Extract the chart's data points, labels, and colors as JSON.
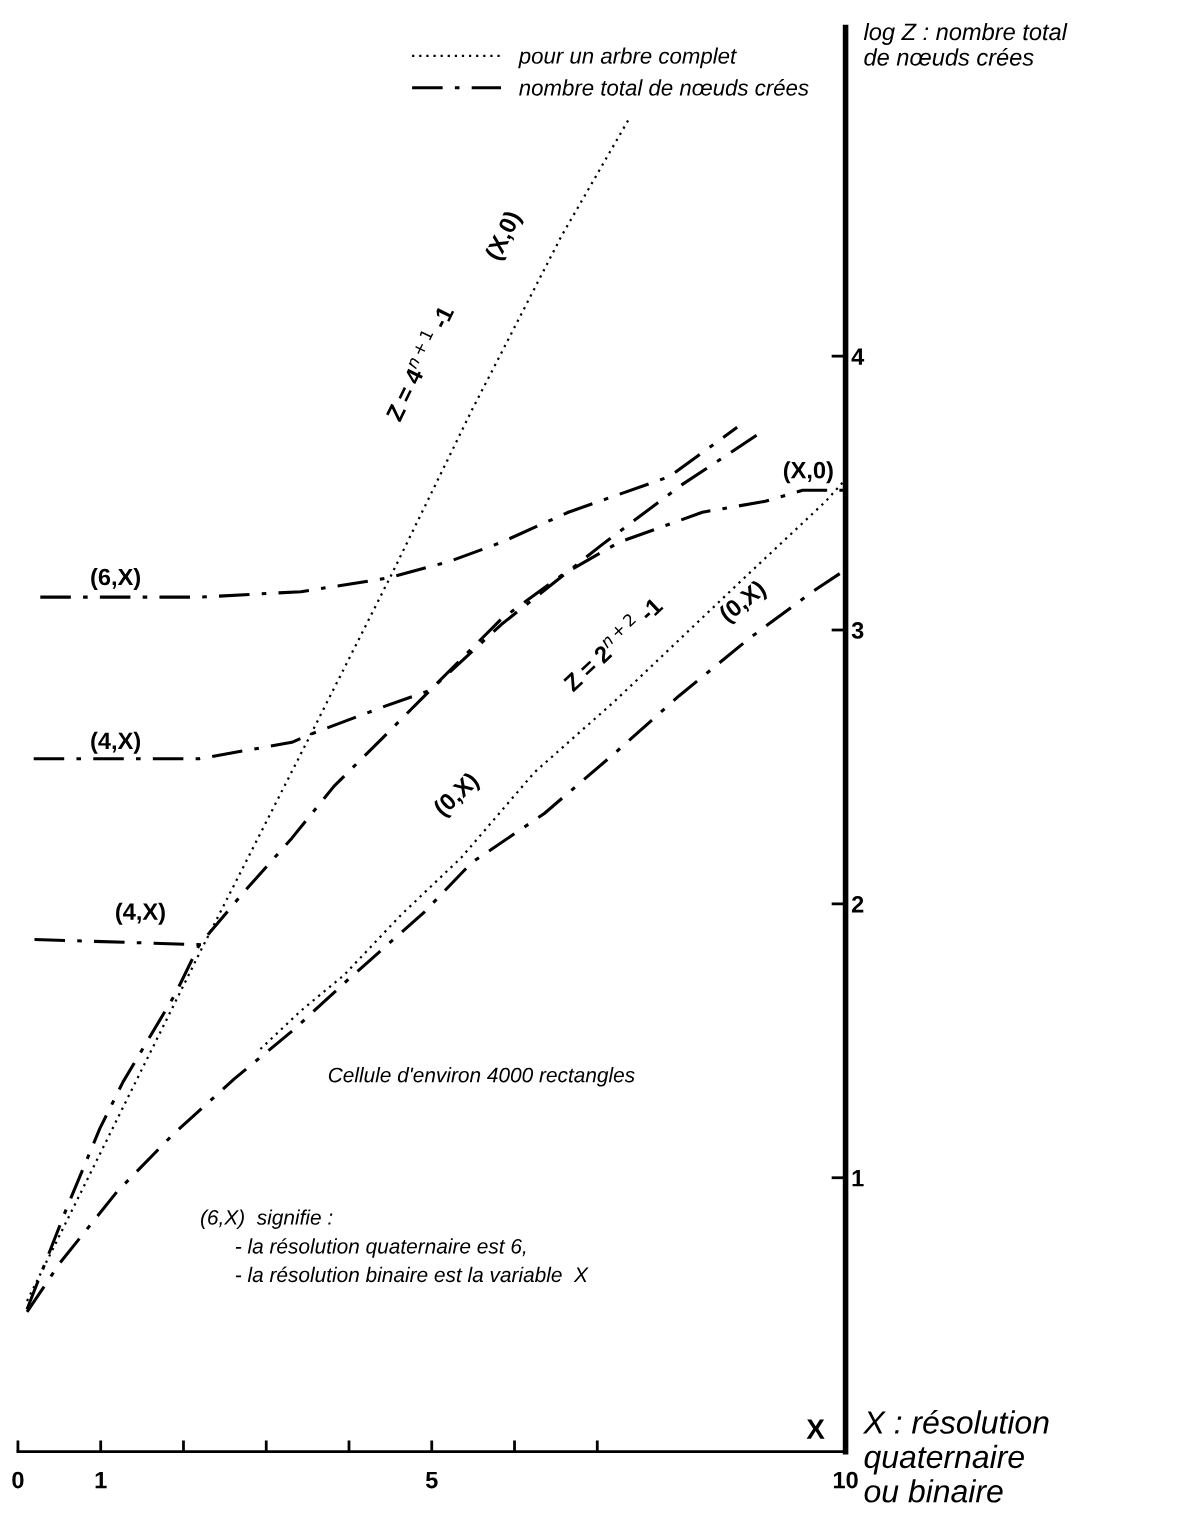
{
  "chart_data": {
    "type": "line",
    "xlabel": "X : résolution\nquaternaire\nou binaire",
    "ylabel": "log Z : nombre total\nde nœuds crées",
    "xlim": [
      0,
      10
    ],
    "ylim": [
      0,
      5.2
    ],
    "xticks": [
      0,
      1,
      {
        "value": 2,
        "label": null
      },
      {
        "value": 3,
        "label": null
      },
      {
        "value": 4,
        "label": null
      },
      5,
      {
        "value": 6,
        "label": null
      },
      {
        "value": 7,
        "label": null
      },
      10
    ],
    "yticks": [
      1,
      2,
      3,
      4
    ],
    "grid": false,
    "legend": "top right",
    "series": [
      {
        "name": "pour un arbre complet",
        "color": "#000000",
        "line_style": "dotted",
        "x": [
          0.11,
          2.21,
          3.54,
          4.51,
          5.48,
          6.57,
          7.39
        ],
        "values": [
          0.55,
          1.83,
          2.62,
          3.2,
          3.8,
          4.44,
          4.87
        ]
      },
      {
        "color": "#000000",
        "line_style": "dotted",
        "x": [
          2.93,
          3.42,
          3.94,
          4.63,
          5.36,
          6.24,
          7.21,
          8.67,
          9.76,
          10.0
        ],
        "values": [
          1.47,
          1.61,
          1.74,
          1.96,
          2.17,
          2.48,
          2.74,
          3.16,
          3.47,
          3.55
        ]
      },
      {
        "name": "nombre total de nœuds crées",
        "color": "#000000",
        "line_style": "dashdot",
        "x": [
          0.11,
          0.59,
          0.99,
          1.27,
          1.9,
          2.19,
          2.75,
          3.31,
          3.82,
          4.42,
          4.98,
          5.84,
          7.05,
          8.02,
          9.02
        ],
        "values": [
          0.52,
          0.89,
          1.18,
          1.35,
          1.67,
          1.85,
          2.05,
          2.24,
          2.43,
          2.61,
          2.78,
          3.02,
          3.31,
          3.53,
          3.73
        ]
      },
      {
        "color": "#000000",
        "line_style": "dashdot",
        "x": [
          0.27,
          2.21,
          3.42,
          4.47,
          5.21,
          5.84,
          6.65,
          7.87,
          8.69
        ],
        "values": [
          3.12,
          3.12,
          3.14,
          3.19,
          3.25,
          3.32,
          3.43,
          3.56,
          3.74
        ]
      },
      {
        "color": "#000000",
        "line_style": "dashdot",
        "x": [
          0.19,
          2.19,
          3.31,
          3.54,
          4.42,
          4.98,
          5.84,
          6.57,
          7.26,
          8.27,
          9.03,
          9.48,
          10.0
        ],
        "values": [
          2.53,
          2.53,
          2.59,
          2.62,
          2.72,
          2.78,
          3.04,
          3.2,
          3.32,
          3.43,
          3.47,
          3.51,
          3.51
        ]
      },
      {
        "color": "#000000",
        "line_style": "dashdot",
        "x": [
          0.2,
          2.3
        ],
        "values": [
          1.87,
          1.85
        ]
      },
      {
        "color": "#000000",
        "line_style": "dashdot",
        "x": [
          0.11,
          0.51,
          1.2,
          1.88,
          2.61,
          3.33,
          3.94,
          4.91,
          5.48,
          6.36,
          7.21,
          7.99,
          8.84,
          9.6,
          10.0
        ],
        "values": [
          0.51,
          0.69,
          0.95,
          1.16,
          1.36,
          1.54,
          1.71,
          1.97,
          2.15,
          2.33,
          2.55,
          2.76,
          2.97,
          3.14,
          3.22
        ]
      }
    ],
    "annotations": [
      "(6,X)",
      "(4,X)",
      "(4,X)",
      "Z = 4$^{n+1}$ -1",
      "(X,0)",
      "(X,0)",
      "Z = 2$^{n+2}$ -1",
      "(0,X)",
      "(0,X)",
      "Cellule d'environ 4000 rectangles",
      "(6,X)  signifie :\n      - la résolution quaternaire est 6,\n      - la résolution binaire est la variable  X",
      "X"
    ]
  }
}
